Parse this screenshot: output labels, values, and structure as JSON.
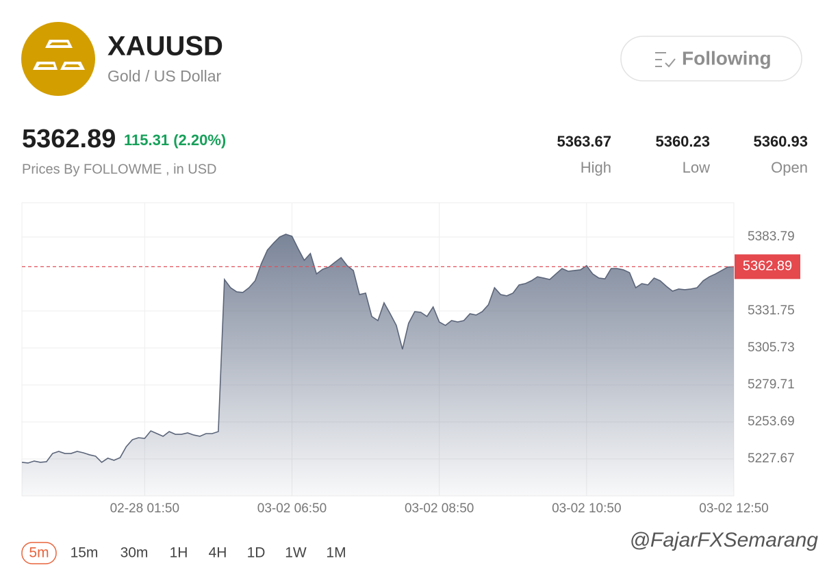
{
  "header": {
    "symbol": "XAUUSD",
    "name": "Gold / US Dollar",
    "button": "Following"
  },
  "quote": {
    "price": "5362.89",
    "change": "115.31 (2.20%)",
    "source": "Prices By FOLLOWME , in USD",
    "stats": [
      {
        "value": "5363.67",
        "label": "High"
      },
      {
        "value": "5360.23",
        "label": "Low"
      },
      {
        "value": "5360.93",
        "label": "Open"
      }
    ]
  },
  "chart_data": {
    "type": "area",
    "color": "#5b6579",
    "categories": [
      null,
      null,
      null,
      null,
      null,
      null,
      null,
      null,
      null,
      null,
      null,
      null,
      null,
      null,
      null,
      null,
      null,
      null,
      null,
      null,
      "02-28 01:50",
      null,
      null,
      null,
      null,
      null,
      null,
      null,
      null,
      null,
      null,
      null,
      null,
      null,
      null,
      null,
      null,
      null,
      null,
      null,
      null,
      null,
      null,
      null,
      "03-02 06:50",
      null,
      null,
      null,
      null,
      null,
      null,
      null,
      null,
      null,
      null,
      null,
      null,
      null,
      null,
      null,
      null,
      null,
      null,
      null,
      null,
      null,
      null,
      null,
      "03-02 08:50",
      null,
      null,
      null,
      null,
      null,
      null,
      null,
      null,
      null,
      null,
      null,
      null,
      null,
      null,
      null,
      null,
      null,
      null,
      null,
      null,
      null,
      null,
      null,
      "03-02 10:50",
      null,
      null,
      null,
      null,
      null,
      null,
      null,
      null,
      null,
      null,
      null,
      null,
      null,
      null,
      null,
      null,
      null,
      null,
      null,
      null,
      null,
      null,
      null,
      "03-02 12:50"
    ],
    "values": [
      5225.3,
      5224.8,
      5226.2,
      5225.3,
      5225.7,
      5231.5,
      5233.0,
      5231.5,
      5231.5,
      5233.0,
      5232.0,
      5230.6,
      5229.6,
      5225.3,
      5228.2,
      5226.7,
      5228.6,
      5236.3,
      5241.2,
      5242.6,
      5242.1,
      5247.4,
      5245.5,
      5243.6,
      5246.9,
      5245.0,
      5245.0,
      5246.0,
      5244.5,
      5243.6,
      5245.5,
      5245.5,
      5246.9,
      5353.9,
      5348.1,
      5345.2,
      5344.8,
      5348.1,
      5353.0,
      5365.0,
      5374.6,
      5379.5,
      5383.8,
      5385.7,
      5384.3,
      5375.6,
      5367.4,
      5372.2,
      5357.8,
      5361.1,
      5362.6,
      5366.0,
      5369.3,
      5363.6,
      5360.2,
      5343.3,
      5344.3,
      5327.9,
      5325.0,
      5337.5,
      5329.8,
      5321.6,
      5304.8,
      5323.1,
      5331.3,
      5330.8,
      5327.9,
      5334.6,
      5324.0,
      5321.6,
      5325.0,
      5324.0,
      5325.0,
      5329.8,
      5328.9,
      5331.3,
      5336.1,
      5348.1,
      5343.3,
      5342.4,
      5344.3,
      5350.1,
      5351.0,
      5353.0,
      5355.8,
      5354.9,
      5353.9,
      5357.8,
      5361.6,
      5359.7,
      5360.2,
      5360.7,
      5363.6,
      5357.8,
      5354.9,
      5354.4,
      5361.6,
      5361.6,
      5360.7,
      5358.7,
      5348.1,
      5351.0,
      5350.1,
      5354.9,
      5353.0,
      5349.1,
      5345.7,
      5347.2,
      5346.7,
      5347.2,
      5348.1,
      5353.0,
      5355.8,
      5357.8,
      5360.2,
      5362.6,
      5362.89
    ],
    "ylim": [
      5201.65,
      5407.88
    ],
    "yticks": [
      5227.67,
      5253.69,
      5279.71,
      5305.73,
      5331.75,
      5383.79
    ],
    "current_price": 5362.89,
    "grid": true
  },
  "timeframes": [
    "5m",
    "15m",
    "30m",
    "1H",
    "4H",
    "1D",
    "1W",
    "1M"
  ],
  "watermark": "@FajarFXSemarang"
}
